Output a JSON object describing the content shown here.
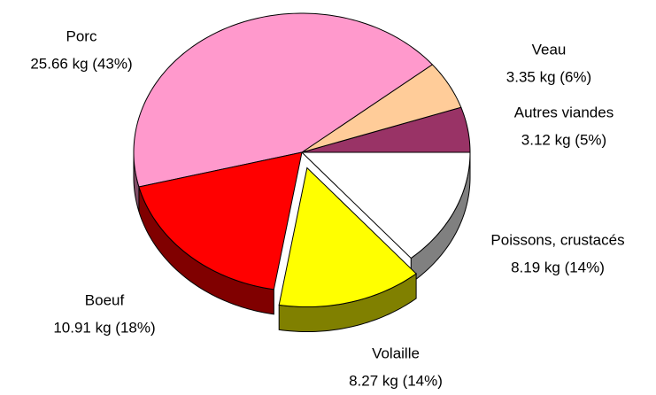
{
  "chart_data": {
    "type": "pie",
    "categories": [
      "Autres viandes",
      "Veau",
      "Porc",
      "Boeuf",
      "Volaille",
      "Poissons, crustacés"
    ],
    "values": [
      3.12,
      3.35,
      25.66,
      10.91,
      8.27,
      8.19
    ],
    "value_labels": [
      "3.12 kg (5%)",
      "3.35 kg (6%)",
      "25.66 kg (43%)",
      "10.91 kg (18%)",
      "8.27 kg (14%)",
      "8.19 kg (14%)"
    ],
    "colors": [
      "#993366",
      "#ffcc99",
      "#ff99cc",
      "#ff0000",
      "#ffff00",
      "#ffffff"
    ],
    "exploded": [
      false,
      false,
      false,
      false,
      true,
      false
    ]
  }
}
